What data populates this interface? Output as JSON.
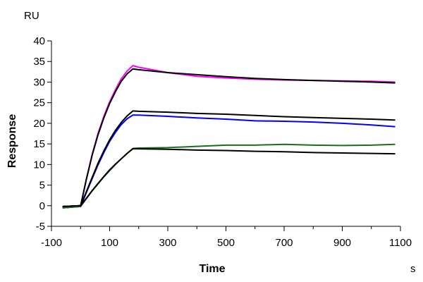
{
  "chart_data": {
    "type": "line",
    "title": "",
    "xlabel": "Time",
    "x_unit": "s",
    "ylabel": "Response",
    "y_unit": "RU",
    "xlim": [
      -100,
      1100
    ],
    "ylim": [
      -5,
      40
    ],
    "x_ticks": [
      -100,
      100,
      300,
      500,
      700,
      900,
      1100
    ],
    "x_tick_labels": [
      "-100",
      "100",
      "300",
      "500",
      "700",
      "900",
      "1100"
    ],
    "y_ticks": [
      -5,
      0,
      5,
      10,
      15,
      20,
      25,
      30,
      35,
      40
    ],
    "y_tick_labels": [
      "-5",
      "0",
      "5",
      "10",
      "15",
      "20",
      "25",
      "30",
      "35",
      "40"
    ],
    "grid": false,
    "series": [
      {
        "name": "sensorgram-high",
        "color": "#ff00ff",
        "x": [
          -60,
          0,
          20,
          40,
          60,
          80,
          100,
          120,
          140,
          160,
          180,
          200,
          300,
          400,
          500,
          600,
          700,
          800,
          900,
          1000,
          1080
        ],
        "y": [
          -0.5,
          -0.2,
          6.5,
          12.5,
          17.5,
          21.7,
          25.2,
          28.2,
          30.8,
          32.7,
          34.0,
          33.6,
          32.3,
          31.4,
          31.0,
          30.7,
          30.5,
          30.4,
          30.3,
          30.2,
          30.0
        ]
      },
      {
        "name": "fit-high",
        "color": "#000000",
        "x": [
          -60,
          0,
          20,
          40,
          60,
          80,
          100,
          120,
          140,
          160,
          180,
          200,
          300,
          400,
          500,
          600,
          700,
          800,
          900,
          1000,
          1080
        ],
        "y": [
          -0.2,
          0.0,
          6.4,
          12.3,
          17.2,
          21.3,
          24.8,
          27.7,
          30.2,
          32.0,
          33.2,
          33.0,
          32.3,
          31.8,
          31.3,
          30.9,
          30.6,
          30.4,
          30.2,
          30.0,
          29.8
        ]
      },
      {
        "name": "sensorgram-mid",
        "color": "#0000ff",
        "x": [
          -60,
          0,
          20,
          40,
          60,
          80,
          100,
          120,
          140,
          160,
          180,
          200,
          300,
          400,
          500,
          600,
          700,
          800,
          900,
          1000,
          1080
        ],
        "y": [
          -0.5,
          -0.2,
          3.2,
          6.6,
          9.9,
          12.9,
          15.6,
          17.8,
          19.7,
          21.1,
          22.0,
          22.0,
          21.7,
          21.3,
          21.0,
          20.6,
          20.5,
          20.3,
          20.0,
          19.6,
          19.2
        ]
      },
      {
        "name": "fit-mid",
        "color": "#000000",
        "x": [
          -60,
          0,
          20,
          40,
          60,
          80,
          100,
          120,
          140,
          160,
          180,
          200,
          300,
          400,
          500,
          600,
          700,
          800,
          900,
          1000,
          1080
        ],
        "y": [
          -0.2,
          0.0,
          3.4,
          6.9,
          10.3,
          13.3,
          16.0,
          18.3,
          20.2,
          21.8,
          23.0,
          22.9,
          22.7,
          22.4,
          22.2,
          21.9,
          21.6,
          21.4,
          21.2,
          21.0,
          20.8
        ]
      },
      {
        "name": "sensorgram-low",
        "color": "#1a6e1a",
        "x": [
          -60,
          0,
          20,
          40,
          60,
          80,
          100,
          120,
          140,
          160,
          180,
          200,
          300,
          400,
          500,
          600,
          700,
          800,
          900,
          1000,
          1080
        ],
        "y": [
          -0.5,
          -0.2,
          1.7,
          3.6,
          5.3,
          7.0,
          8.5,
          10.0,
          11.4,
          12.7,
          13.9,
          14.0,
          14.1,
          14.4,
          14.7,
          14.7,
          14.9,
          14.7,
          14.6,
          14.7,
          14.9
        ]
      },
      {
        "name": "fit-low",
        "color": "#000000",
        "x": [
          -60,
          0,
          20,
          40,
          60,
          80,
          100,
          120,
          140,
          160,
          180,
          200,
          300,
          400,
          500,
          600,
          700,
          800,
          900,
          1000,
          1080
        ],
        "y": [
          -0.2,
          0.0,
          1.8,
          3.7,
          5.4,
          7.1,
          8.7,
          10.1,
          11.4,
          12.7,
          13.8,
          13.8,
          13.7,
          13.5,
          13.4,
          13.2,
          13.1,
          12.9,
          12.8,
          12.7,
          12.6
        ]
      }
    ]
  }
}
